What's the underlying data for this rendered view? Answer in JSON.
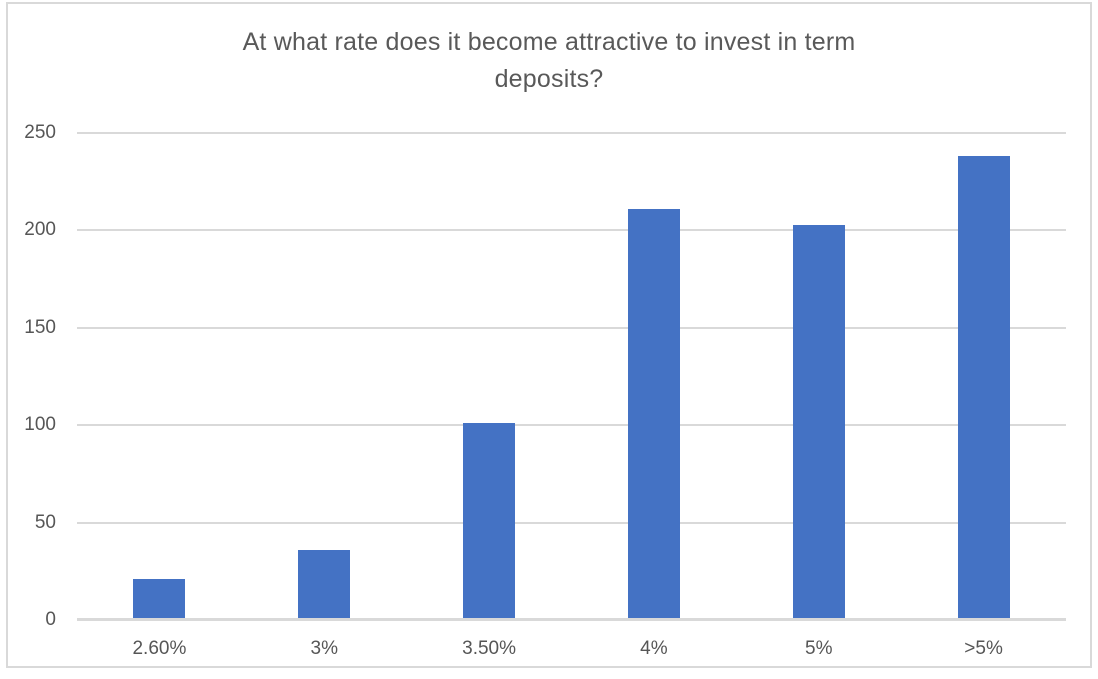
{
  "chart": {
    "title_lines": [
      "At what rate does it become attractive to invest in term",
      "deposits?"
    ]
  },
  "chart_data": {
    "type": "bar",
    "title": "At what rate does it become attractive to invest in term deposits?",
    "categories": [
      "2.60%",
      "3%",
      "3.50%",
      "4%",
      "5%",
      ">5%"
    ],
    "values": [
      21,
      36,
      101,
      211,
      203,
      238
    ],
    "xlabel": "",
    "ylabel": "",
    "ylim": [
      0,
      250
    ],
    "yticks": [
      0,
      50,
      100,
      150,
      200,
      250
    ],
    "grid": true,
    "legend": false,
    "colors": {
      "bar": "#4472C4",
      "gridline": "#D9D9D9",
      "axis_line": "#D9D9D9",
      "title_text": "#595959",
      "tick_text": "#565656",
      "frame_border": "#D9D9D9",
      "background": "#FFFFFF"
    }
  }
}
